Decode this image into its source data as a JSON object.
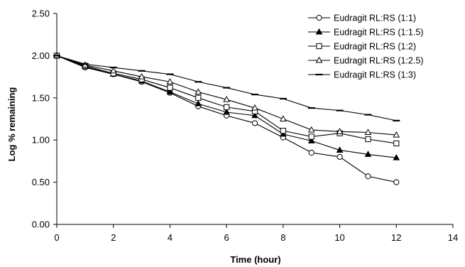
{
  "chart_data": {
    "type": "line",
    "title": "",
    "xlabel": "Time (hour)",
    "ylabel": "Log % remaining",
    "xlim": [
      0,
      14
    ],
    "ylim": [
      0,
      2.5
    ],
    "x_ticks": [
      "0",
      "2",
      "4",
      "6",
      "8",
      "10",
      "12",
      "14"
    ],
    "y_ticks": [
      "0.00",
      "0.50",
      "1.00",
      "1.50",
      "2.00",
      "2.50"
    ],
    "grid": false,
    "legend_position": "top-right",
    "x": [
      0,
      1,
      2,
      3,
      4,
      5,
      6,
      7,
      8,
      9,
      10,
      11,
      12
    ],
    "series": [
      {
        "name": "Eudragit RL:RS (1:1)",
        "marker": "circle-open",
        "values": [
          2.0,
          1.86,
          1.78,
          1.69,
          1.56,
          1.4,
          1.29,
          1.2,
          1.03,
          0.85,
          0.8,
          0.57,
          0.5
        ]
      },
      {
        "name": "Eudragit RL:RS (1:1.5)",
        "marker": "triangle-filled",
        "values": [
          2.0,
          1.87,
          1.78,
          1.7,
          1.57,
          1.43,
          1.33,
          1.29,
          1.07,
          0.99,
          0.88,
          0.83,
          0.79
        ]
      },
      {
        "name": "Eudragit RL:RS (1:2)",
        "marker": "square-open",
        "values": [
          2.0,
          1.88,
          1.79,
          1.72,
          1.62,
          1.5,
          1.39,
          1.34,
          1.11,
          1.04,
          1.08,
          1.01,
          0.96
        ]
      },
      {
        "name": "Eudragit RL:RS (1:2.5)",
        "marker": "triangle-open",
        "values": [
          2.0,
          1.89,
          1.82,
          1.75,
          1.69,
          1.57,
          1.48,
          1.38,
          1.25,
          1.12,
          1.1,
          1.09,
          1.06
        ]
      },
      {
        "name": "Eudragit RL:RS (1:3)",
        "marker": "dash",
        "values": [
          2.0,
          1.9,
          1.86,
          1.82,
          1.78,
          1.69,
          1.62,
          1.54,
          1.49,
          1.38,
          1.35,
          1.3,
          1.23
        ]
      }
    ]
  }
}
